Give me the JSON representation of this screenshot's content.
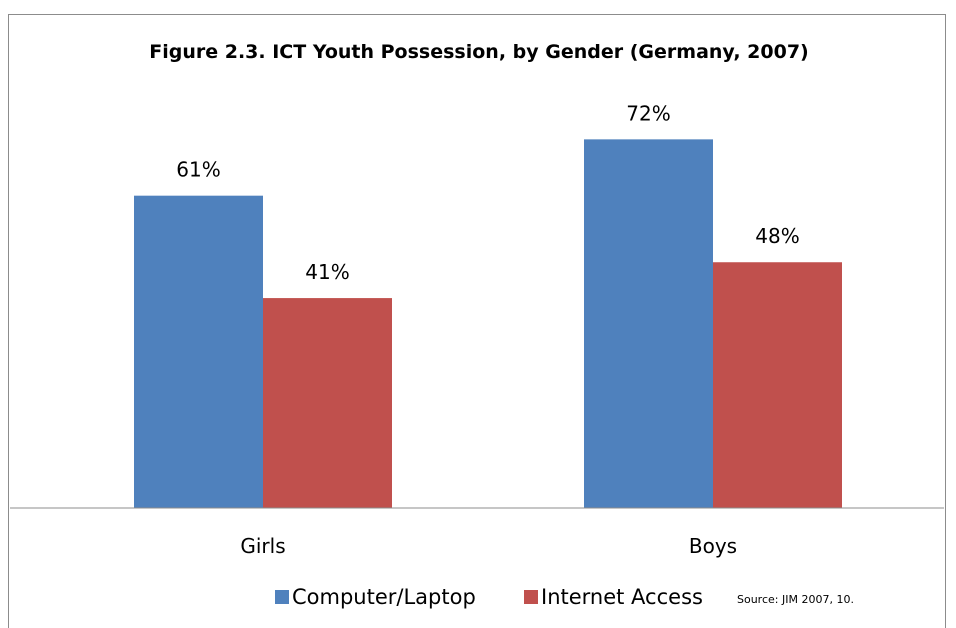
{
  "chart_data": {
    "type": "bar",
    "title": "Figure 2.3. ICT Youth Possession, by Gender (Germany, 2007)",
    "categories": [
      "Girls",
      "Boys"
    ],
    "series": [
      {
        "name": "Computer/Laptop",
        "values": [
          61,
          72
        ],
        "labels": [
          "61%",
          "72%"
        ],
        "color": "#4F81BD"
      },
      {
        "name": "Internet Access",
        "values": [
          41,
          48
        ],
        "labels": [
          "41%",
          "48%"
        ],
        "color": "#C0504D"
      }
    ],
    "ylim": [
      0,
      80
    ],
    "grid": false,
    "legend_position": "bottom",
    "source": "Source: JIM 2007, 10."
  }
}
